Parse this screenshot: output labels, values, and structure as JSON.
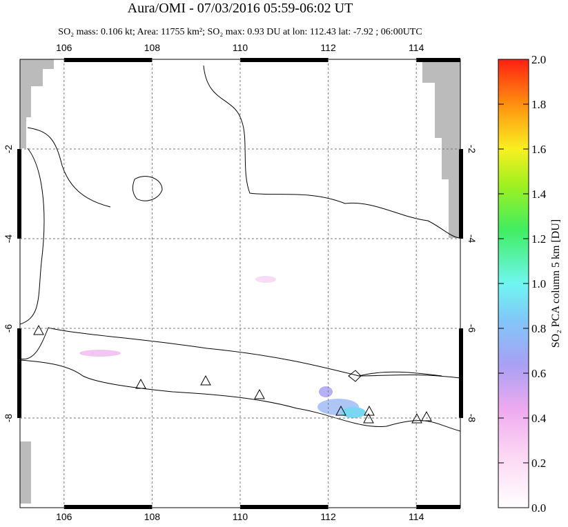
{
  "chart_data": {
    "type": "map",
    "title": "Aura/OMI - 07/03/2016 05:59-06:02 UT",
    "subtitle": "SO₂ mass: 0.106 kt; Area: 11755 km²; SO₂ max: 0.93 DU at lon: 112.43 lat: -7.92 ; 06:00UTC",
    "xlim": [
      105,
      115
    ],
    "xticks": [
      106,
      108,
      110,
      112,
      114
    ],
    "ylim": [
      -10,
      0
    ],
    "yticks": [
      -2,
      -4,
      -6,
      -8
    ],
    "grid": true,
    "colorbar": {
      "label": "SO₂ PCA column 5 km [DU]",
      "lim": [
        0,
        2
      ],
      "ticks": [
        {
          "value": 0,
          "label": "0.0"
        },
        0.2,
        0.4,
        0.6,
        0.8,
        {
          "value": 1,
          "label": "1.0"
        },
        1.2,
        1.4,
        1.6,
        1.8,
        {
          "value": 2,
          "label": "2.0"
        }
      ]
    }
  }
}
